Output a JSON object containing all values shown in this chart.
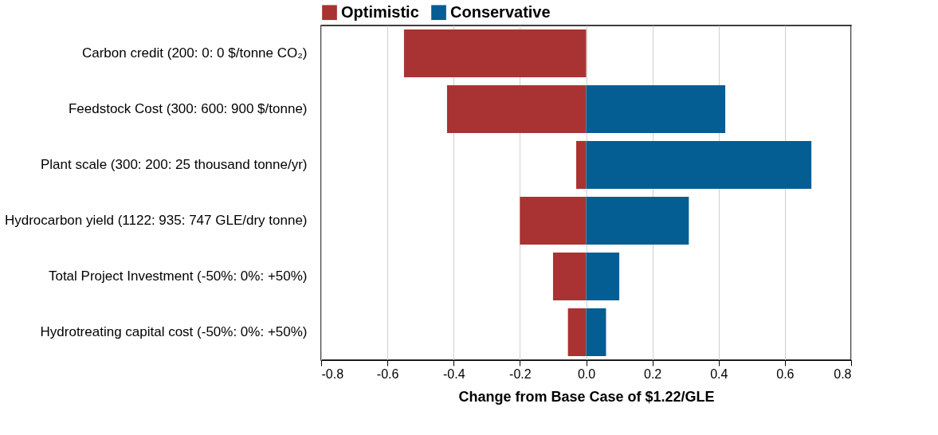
{
  "chart_data": {
    "type": "bar",
    "orientation": "horizontal",
    "xlabel": "Change from Base Case of $1.22/GLE",
    "categories": [
      "Carbon credit (200: 0: 0 $/tonne CO₂)",
      "Feedstock Cost (300: 600: 900 $/tonne)",
      "Plant scale (300: 200: 25 thousand tonne/yr)",
      "Hydrocarbon yield (1122: 935: 747 GLE/dry tonne)",
      "Total Project Investment (-50%: 0%: +50%)",
      "Hydrotreating capital cost (-50%: 0%: +50%)"
    ],
    "series": [
      {
        "name": "Optimistic",
        "color": "#a93332",
        "values": [
          -0.55,
          -0.42,
          -0.03,
          -0.2,
          -0.1,
          -0.055
        ]
      },
      {
        "name": "Conservative",
        "color": "#045e93",
        "values": [
          null,
          0.42,
          0.68,
          0.31,
          0.1,
          0.06
        ]
      }
    ],
    "stacked": true,
    "xlim": [
      -0.8,
      0.8
    ],
    "xticks": [
      -0.8,
      -0.6,
      -0.4,
      -0.2,
      {
        "value": 0,
        "label": "0.0"
      },
      0.2,
      0.4,
      0.6,
      0.8
    ],
    "grid": "x",
    "legend": "top"
  }
}
